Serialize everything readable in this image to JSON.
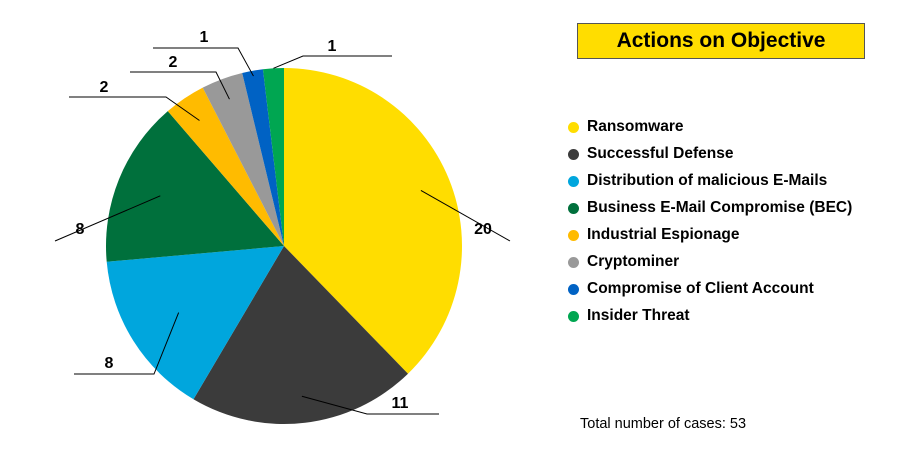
{
  "chart_data": {
    "type": "pie",
    "title": "Actions on Objective",
    "categories": [
      "Ransomware",
      "Successful Defense",
      "Distribution of malicious E-Mails",
      "Business E-Mail Compromise (BEC)",
      "Industrial Espionage",
      "Cryptominer",
      "Compromise of Client Account",
      "Insider Threat"
    ],
    "values": [
      20,
      11,
      8,
      8,
      2,
      2,
      1,
      1
    ],
    "colors": [
      "#ffdd00",
      "#3b3b3b",
      "#00a6dd",
      "#00703c",
      "#ffbb00",
      "#999999",
      "#0062c4",
      "#00a651"
    ],
    "legend_position": "right",
    "start": "top, clockwise"
  },
  "footer": {
    "total_label": "Total number of cases:",
    "total_value": "53"
  }
}
